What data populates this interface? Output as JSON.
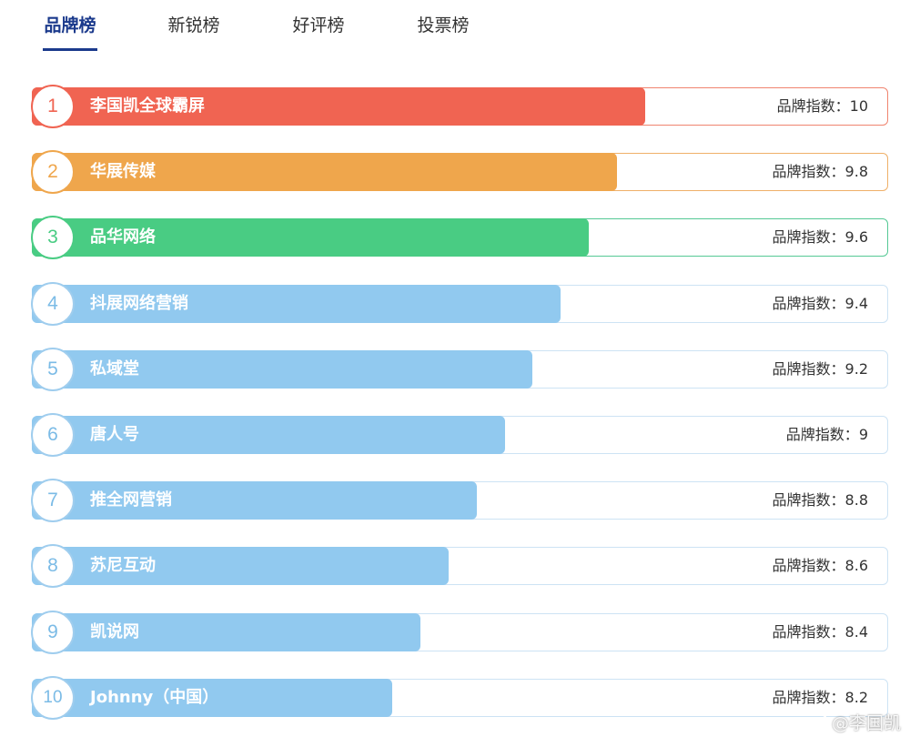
{
  "tabs": [
    {
      "label": "品牌榜",
      "active": true
    },
    {
      "label": "新锐榜",
      "active": false
    },
    {
      "label": "好评榜",
      "active": false
    },
    {
      "label": "投票榜",
      "active": false
    }
  ],
  "score_label": "品牌指数：",
  "colors": {
    "rank1": "#f06452",
    "rank2": "#efa64c",
    "rank3": "#49cc83",
    "rest": "#91c9ef",
    "rank1_border": "#f0846f",
    "rank2_border": "#efb069",
    "rank3_border": "#55c995",
    "rest_border": "#cde3f4"
  },
  "ranking": [
    {
      "rank": "1",
      "name": "李国凯全球霸屏",
      "score": "10"
    },
    {
      "rank": "2",
      "name": "华展传媒",
      "score": "9.8"
    },
    {
      "rank": "3",
      "name": "品华网络",
      "score": "9.6"
    },
    {
      "rank": "4",
      "name": "抖展网络营销",
      "score": "9.4"
    },
    {
      "rank": "5",
      "name": "私域堂",
      "score": "9.2"
    },
    {
      "rank": "6",
      "name": "唐人号",
      "score": "9"
    },
    {
      "rank": "7",
      "name": "推全网营销",
      "score": "8.8"
    },
    {
      "rank": "8",
      "name": "苏尼互动",
      "score": "8.6"
    },
    {
      "rank": "9",
      "name": "凯说网",
      "score": "8.4"
    },
    {
      "rank": "10",
      "name": "Johnny（中国）",
      "score": "8.2"
    }
  ],
  "watermark": {
    "prefix": "@",
    "text": "李国凯",
    "icon": "weibo-icon"
  }
}
